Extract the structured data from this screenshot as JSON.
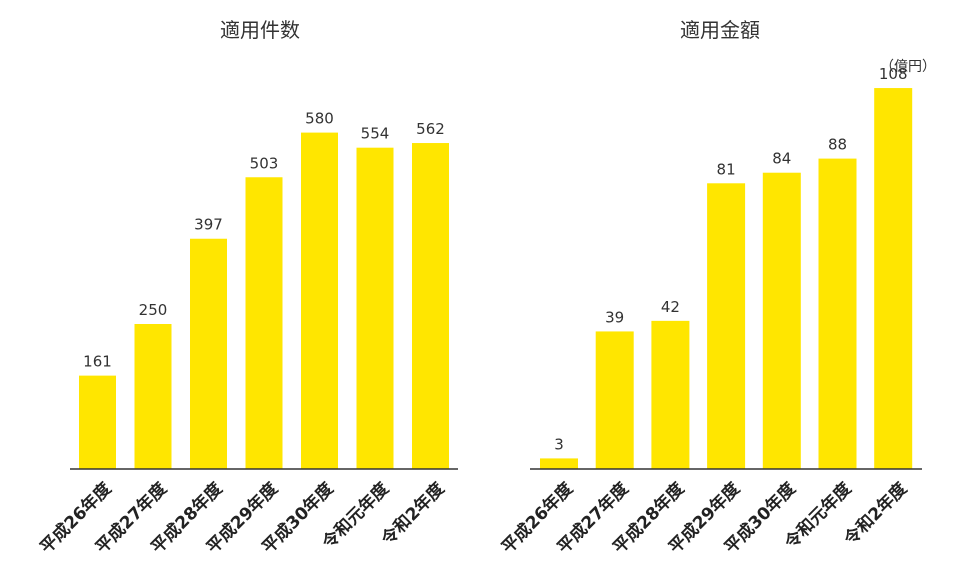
{
  "chart_data": [
    {
      "type": "bar",
      "title": "適用件数",
      "categories": [
        "平成26年度",
        "平成27年度",
        "平成28年度",
        "平成29年度",
        "平成30年度",
        "令和元年度",
        "令和2年度"
      ],
      "values": [
        161,
        250,
        397,
        503,
        580,
        554,
        562
      ],
      "ylim": [
        0,
        600
      ],
      "bar_color": "#FFE600",
      "axis_color": "#333333",
      "grid": false
    },
    {
      "type": "bar",
      "title": "適用金額",
      "unit": "（億円）",
      "categories": [
        "平成26年度",
        "平成27年度",
        "平成28年度",
        "平成29年度",
        "平成30年度",
        "令和元年度",
        "令和2年度"
      ],
      "values": [
        3,
        39,
        42,
        81,
        84,
        88,
        108
      ],
      "ylim": [
        0,
        110
      ],
      "bar_color": "#FFE600",
      "axis_color": "#333333",
      "grid": false
    }
  ]
}
